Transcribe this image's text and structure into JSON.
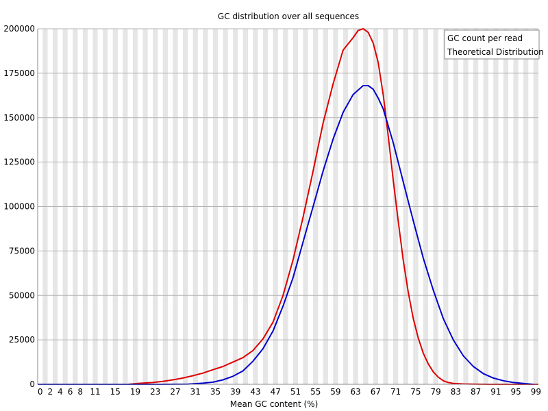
{
  "chart_data": {
    "type": "line",
    "title": "GC distribution over all sequences",
    "xlabel": "Mean GC content (%)",
    "ylabel": "",
    "xlim": [
      0,
      100
    ],
    "ylim": [
      0,
      200000
    ],
    "x_ticks": [
      0,
      2,
      4,
      6,
      8,
      11,
      15,
      19,
      23,
      27,
      31,
      35,
      39,
      43,
      47,
      51,
      55,
      59,
      63,
      67,
      71,
      75,
      79,
      83,
      87,
      91,
      95,
      99
    ],
    "y_ticks": [
      0,
      25000,
      50000,
      75000,
      100000,
      125000,
      150000,
      175000,
      200000
    ],
    "grid": true,
    "legend_position": "top-right",
    "series": [
      {
        "name": "GC count per read",
        "color": "#dd0000",
        "x": [
          0,
          5,
          10,
          15,
          18,
          20,
          23,
          25,
          27,
          29,
          31,
          33,
          35,
          37,
          39,
          41,
          43,
          45,
          47,
          49,
          51,
          53,
          55,
          57,
          59,
          61,
          63,
          64,
          65,
          66,
          67,
          68,
          69,
          70,
          71,
          72,
          73,
          74,
          75,
          76,
          77,
          78,
          79,
          80,
          81,
          82,
          83,
          85,
          87,
          90,
          95,
          100
        ],
        "values": [
          0,
          0,
          0,
          0,
          0,
          500,
          1000,
          1600,
          2500,
          3500,
          4800,
          6300,
          8200,
          10000,
          12500,
          15000,
          19000,
          25500,
          35000,
          50000,
          70000,
          94000,
          120000,
          147000,
          169000,
          188000,
          195000,
          199000,
          200000,
          198000,
          192000,
          181000,
          163000,
          140000,
          115000,
          92000,
          70000,
          52000,
          37000,
          26000,
          17500,
          11500,
          7000,
          4000,
          2000,
          1000,
          500,
          200,
          100,
          0,
          0,
          0
        ]
      },
      {
        "name": "Theoretical Distribution",
        "color": "#0000cc",
        "x": [
          0,
          10,
          20,
          25,
          30,
          33,
          35,
          37,
          39,
          41,
          43,
          45,
          47,
          49,
          51,
          53,
          55,
          57,
          59,
          61,
          63,
          65,
          66,
          67,
          68,
          69,
          71,
          73,
          75,
          77,
          79,
          81,
          83,
          85,
          87,
          89,
          91,
          93,
          95,
          97,
          99
        ],
        "values": [
          0,
          0,
          0,
          0,
          100,
          600,
          1200,
          2500,
          4500,
          7500,
          13000,
          20000,
          30000,
          44000,
          60000,
          80000,
          100000,
          120000,
          138000,
          153000,
          163000,
          168000,
          168000,
          166000,
          161000,
          155000,
          136000,
          114000,
          92000,
          71000,
          53000,
          37000,
          25000,
          16000,
          10000,
          6000,
          3500,
          2000,
          1000,
          500,
          0
        ]
      }
    ]
  }
}
